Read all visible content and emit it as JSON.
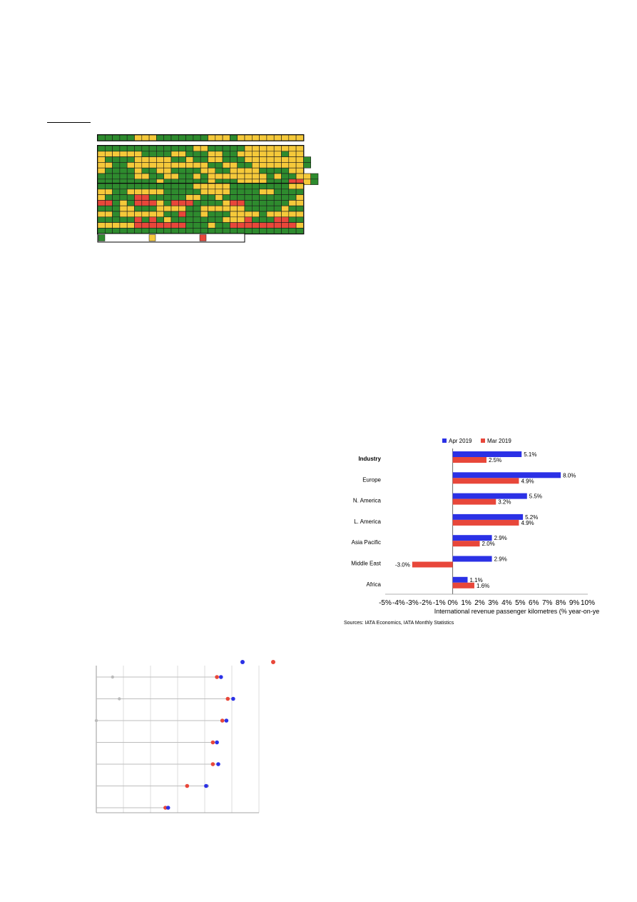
{
  "heatmap": {
    "colors": {
      "g": "#2e8b2e",
      "y": "#f5c93a",
      "r": "#e8473a"
    },
    "legend": {
      "swatches": [
        "g",
        "y",
        "r"
      ]
    },
    "blocks": [
      {
        "rows": [
          "gggggyyygggggggyyygyyyyyyyyy"
        ]
      },
      {
        "rows": [
          "gggggggggggggyygggggyyyyyyyy",
          "yyyyyyggggyygggyyggyyyyyygyy",
          "yggggyyyyyggyggyygggyyyyyyyyg",
          "yyggyyyyyyyyyyyggyyggyyyyyyyg",
          "yggggyggyyggggyyggyyyyggggyy",
          "gggggyyggyyggygyyyyyyyygyggyyg",
          "ggggggggyggggggygggyyyygggrryg"
        ]
      },
      {
        "rows": [
          "gggggggggggggyyyyyggggggggyy",
          "yyggyyyyygggggyyyyggggyygggg",
          "yggggrrgggggyyggyggggggggggy",
          "rrgygrrrygrrrggggyrrggggggyy",
          "gggyygggyyyyggyyyyyygggggygg",
          "yygyyyyyyggrggygggyyyygyyyyy",
          "gggggrgrgygggggggyyyrgggrrgg",
          "yyyyyrrrrrrrgggyggrrrrrrrrry",
          "gggggggggggggggggggggggggggg"
        ]
      }
    ]
  },
  "chart_data": [
    {
      "type": "bar",
      "orientation": "horizontal",
      "categories": [
        "Industry",
        "Europe",
        "N. America",
        "L. America",
        "Asia Pacific",
        "Middle East",
        "Africa"
      ],
      "bold_categories": [
        "Industry"
      ],
      "series": [
        {
          "name": "Apr 2019",
          "color": "#2b31e6",
          "values": [
            5.1,
            8.0,
            5.5,
            5.2,
            2.9,
            2.9,
            1.1
          ],
          "labels": [
            "5.1%",
            "8.0%",
            "5.5%",
            "5.2%",
            "2.9%",
            "2.9%",
            "1.1%"
          ]
        },
        {
          "name": "Mar 2019",
          "color": "#e8473a",
          "values": [
            2.5,
            4.9,
            3.2,
            4.9,
            2.0,
            -3.0,
            1.6
          ],
          "labels": [
            "2.5%",
            "4.9%",
            "3.2%",
            "4.9%",
            "2.0%",
            "-3.0%",
            "1.6%"
          ]
        }
      ],
      "xlim": [
        -5,
        10
      ],
      "xticks": [
        "-5%",
        "-4%",
        "-3%",
        "-2%",
        "-1%",
        "0%",
        "1%",
        "2%",
        "3%",
        "4%",
        "5%",
        "6%",
        "7%",
        "8%",
        "9%",
        "10%"
      ],
      "xlabel": "International revenue passenger kilometres (% year-on-year)",
      "legend": "top",
      "source": "Sources: IATA Economics, IATA Monthly Statistics"
    },
    {
      "type": "scatter",
      "style": "dot-plot",
      "xlim": [
        0,
        6
      ],
      "rows": [
        {
          "grey": 0.6,
          "red": 4.45,
          "blue": 4.6
        },
        {
          "grey": 0.85,
          "red": 4.85,
          "blue": 5.05
        },
        {
          "grey": 0.0,
          "red": 4.65,
          "blue": 4.8
        },
        {
          "red": 4.3,
          "blue": 4.45
        },
        {
          "red": 4.3,
          "blue": 4.5
        },
        {
          "grey": 4.1,
          "red": 3.35,
          "blue": 4.05
        },
        {
          "red": 2.55,
          "blue": 2.65
        }
      ],
      "legend_colors": {
        "blue": "#2b31e6",
        "red": "#e8473a",
        "grey": "#bbbbbb"
      }
    }
  ]
}
